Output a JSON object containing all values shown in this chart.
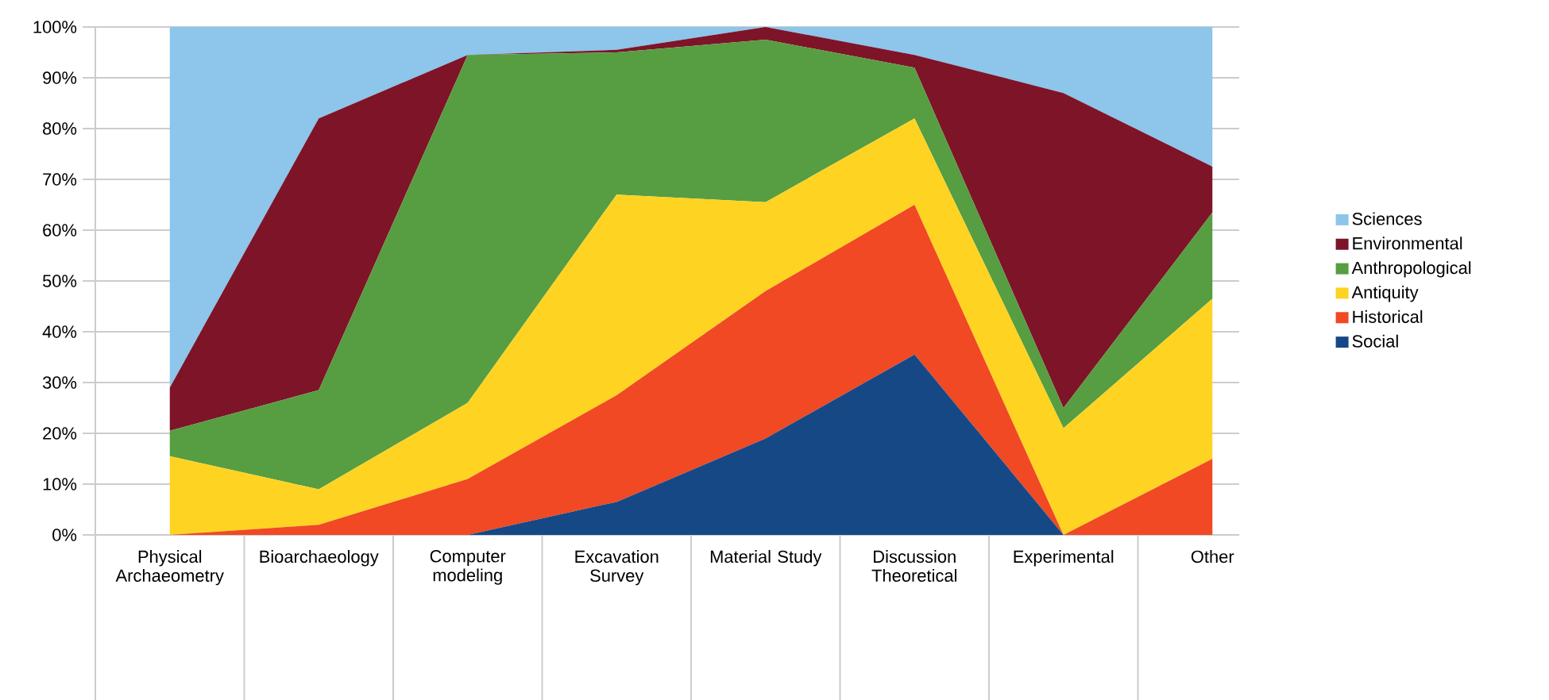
{
  "chart_data": {
    "type": "area",
    "stacked": true,
    "categories": [
      "Physical Archaeometry",
      "Bioarchaeology",
      "Computer modeling",
      "Excavation Survey",
      "Material Study",
      "Discussion Theoretical",
      "Experimental",
      "Other"
    ],
    "series": [
      {
        "name": "Social",
        "color": "#164886",
        "values": [
          0,
          0,
          0,
          6.5,
          19,
          35.5,
          0,
          0
        ]
      },
      {
        "name": "Historical",
        "color": "#f04923",
        "values": [
          0,
          2,
          11,
          21,
          29,
          29.5,
          0,
          15
        ]
      },
      {
        "name": "Antiquity",
        "color": "#fed322",
        "values": [
          15.5,
          7,
          15,
          39.5,
          17.5,
          17,
          21,
          31.5
        ]
      },
      {
        "name": "Anthropological",
        "color": "#579d42",
        "values": [
          5,
          19.5,
          68.5,
          28,
          32,
          10,
          4,
          17
        ]
      },
      {
        "name": "Environmental",
        "color": "#7e1428",
        "values": [
          8.5,
          53.5,
          0,
          0.5,
          2.5,
          2.5,
          62,
          9
        ]
      },
      {
        "name": "Sciences",
        "color": "#8dc5eb",
        "values": [
          71,
          18,
          5.5,
          4.5,
          0,
          5.5,
          13,
          27.5
        ]
      }
    ],
    "ylim": [
      0,
      100
    ],
    "yticks": [
      {
        "value": 0,
        "label": "0%"
      },
      {
        "value": 10,
        "label": "10%"
      },
      {
        "value": 20,
        "label": "20%"
      },
      {
        "value": 30,
        "label": "30%"
      },
      {
        "value": 40,
        "label": "40%"
      },
      {
        "value": 50,
        "label": "50%"
      },
      {
        "value": 60,
        "label": "60%"
      },
      {
        "value": 70,
        "label": "70%"
      },
      {
        "value": 80,
        "label": "80%"
      },
      {
        "value": 90,
        "label": "90%"
      },
      {
        "value": 100,
        "label": "100%"
      }
    ],
    "grid": "y",
    "legend": "right"
  }
}
